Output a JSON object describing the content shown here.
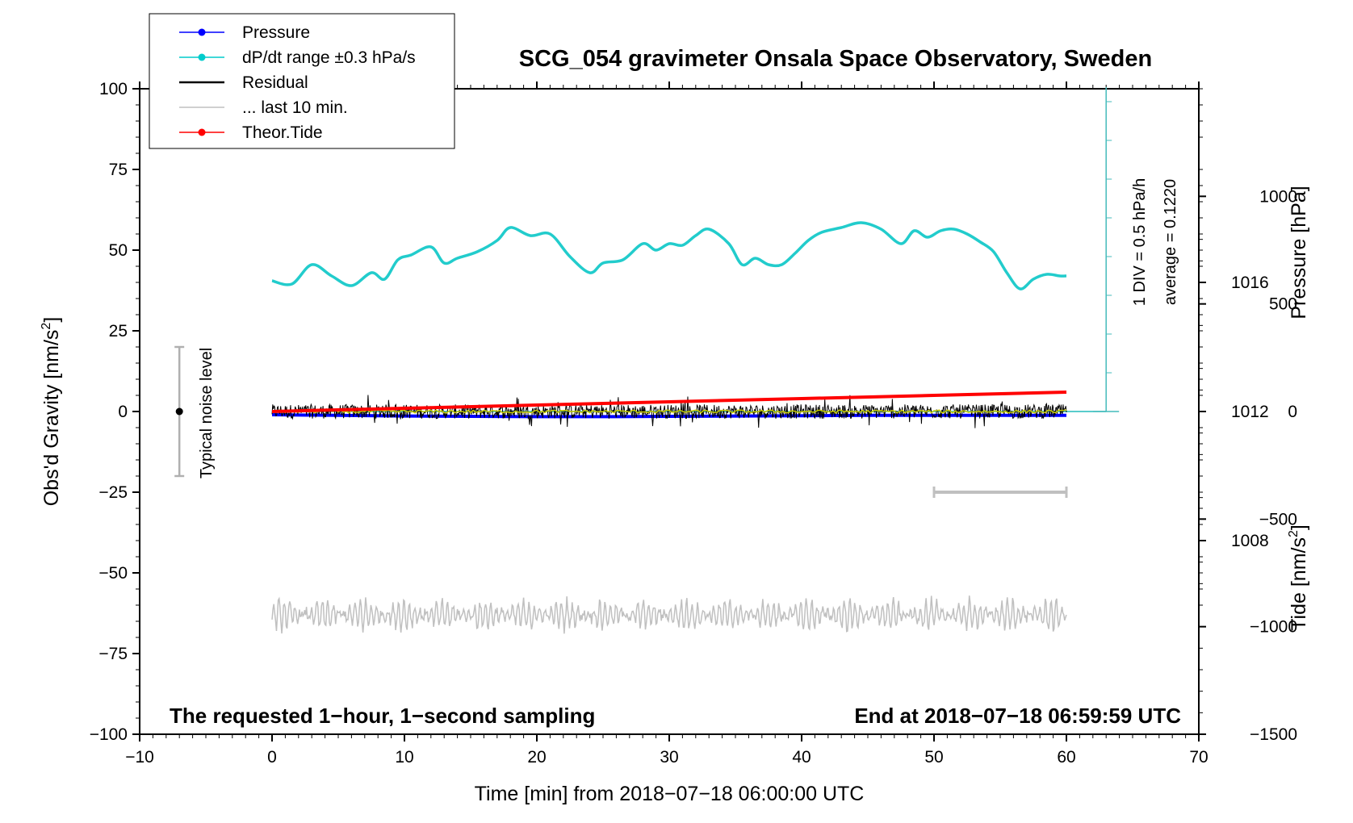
{
  "chart_data": {
    "type": "line",
    "title": "SCG_054 gravimeter Onsala Space Observatory, Sweden",
    "xlabel": "Time [min] from 2018−07−18 06:00:00 UTC",
    "ylabel": "Obs'd Gravity [nm/s",
    "ylabel_sup": "2",
    "ylabel_end": "]",
    "y2label": "Pressure [hPa]",
    "y3label": "Tide [nm/s",
    "y3label_sup": "2",
    "y3label_end": "]",
    "xlim": [
      -10,
      70
    ],
    "ylim": [
      -100,
      100
    ],
    "pressure_lim": [
      1002,
      1022
    ],
    "tide_lim": [
      -1500,
      1500
    ],
    "grid": false,
    "legend_position": "top-left",
    "x_ticks": [
      -10,
      0,
      10,
      20,
      30,
      40,
      50,
      60,
      70
    ],
    "x_tick_labels": [
      "−10",
      "0",
      "10",
      "20",
      "30",
      "40",
      "50",
      "60",
      "70"
    ],
    "y_ticks": [
      100,
      75,
      50,
      25,
      0,
      -25,
      -50,
      -75,
      -100
    ],
    "y_tick_labels": [
      "100",
      "75",
      "50",
      "25",
      "0",
      "−25",
      "−50",
      "−75",
      "−100"
    ],
    "pressure_ticks": [
      1016,
      1012,
      1008
    ],
    "pressure_tick_labels": [
      "1016",
      "1012",
      "1008"
    ],
    "tide_ticks": [
      1000,
      500,
      0,
      -500,
      -1000,
      -1500
    ],
    "tide_tick_labels": [
      "1000",
      "500",
      "0",
      "−500",
      "−1000",
      "−1500"
    ],
    "legend": [
      {
        "label": "Pressure",
        "color": "#0000ff",
        "marker": true
      },
      {
        "label": "dP/dt range ±0.3 hPa/s",
        "color": "#00cccc",
        "marker": true
      },
      {
        "label": "Residual",
        "color": "#000000",
        "marker": false
      },
      {
        "label": "... last 10 min.",
        "color": "#c0c0c0",
        "marker": false
      },
      {
        "label": "Theor.Tide",
        "color": "#ff0000",
        "marker": true
      }
    ],
    "series": [
      {
        "name": "Pressure",
        "color": "#0000ff",
        "axis": "pressure",
        "x": [
          0,
          5,
          10,
          15,
          20,
          25,
          30,
          35,
          40,
          45,
          50,
          55,
          60
        ],
        "values": [
          1011.9,
          1011.88,
          1011.86,
          1011.85,
          1011.84,
          1011.84,
          1011.85,
          1011.86,
          1011.87,
          1011.88,
          1011.88,
          1011.88,
          1011.88
        ]
      },
      {
        "name": "dP/dt",
        "color": "#22cccc",
        "axis": "gravity",
        "x": [
          0,
          1.5,
          3,
          4.5,
          6,
          7.5,
          8.5,
          9.5,
          10.5,
          12,
          13,
          14,
          15.5,
          17,
          18,
          19.5,
          21,
          22.5,
          24,
          25,
          26.5,
          28,
          29,
          30,
          31,
          32,
          33,
          34.5,
          35.5,
          36.5,
          37.5,
          38.5,
          39.5,
          40.5,
          41.5,
          43,
          44.5,
          46,
          47.5,
          48.5,
          49.5,
          50.5,
          51.5,
          52.5,
          53.5,
          54.5,
          55.5,
          56.5,
          57.5,
          58.5,
          59.5,
          60
        ],
        "values": [
          40.5,
          39.5,
          45.5,
          42,
          39,
          43,
          41,
          47,
          48.5,
          51,
          46,
          47.5,
          49.5,
          53,
          57,
          54.5,
          55,
          48,
          43,
          46,
          47,
          52,
          50,
          52,
          51.5,
          54.5,
          56.5,
          52,
          45.5,
          47.5,
          45.5,
          45.5,
          49,
          53,
          55.5,
          57,
          58.5,
          56.5,
          52,
          56,
          54,
          56,
          56.5,
          55,
          52.5,
          49.5,
          43,
          38,
          41,
          42.5,
          42,
          42
        ]
      },
      {
        "name": "Residual",
        "color": "#000000",
        "axis": "gravity",
        "x": [
          0,
          60
        ],
        "values": [
          0,
          0
        ]
      },
      {
        "name": "Residual (smoothed)",
        "color": "#cccc00",
        "axis": "gravity",
        "x": [
          0,
          60
        ],
        "values": [
          0,
          0
        ]
      },
      {
        "name": "... last 10 min.",
        "color": "#c0c0c0",
        "axis": "gravity",
        "x": [
          0,
          60
        ],
        "values": [
          -63,
          -63
        ]
      },
      {
        "name": "Theor.Tide",
        "color": "#ff0000",
        "axis": "tide",
        "x": [
          0,
          10,
          20,
          30,
          40,
          50,
          60
        ],
        "values": [
          0,
          15,
          30,
          45,
          60,
          75,
          90
        ]
      }
    ],
    "pressure_average_line": 1012,
    "last10_bar": {
      "x": [
        50,
        60
      ],
      "y": -25,
      "color": "#c0c0c0"
    },
    "noise_bar": {
      "x": -7,
      "y": 0,
      "low": -20,
      "high": 20,
      "color": "#b0b0b0"
    },
    "noise_label": "Typical noise level",
    "dpdt_scale_label1": "1 DIV = 0.5 hPa/h",
    "dpdt_scale_label2": "average = 0.1220",
    "footer_left": "The requested 1−hour, 1−second sampling",
    "footer_right": "End at 2018−07−18 06:59:59 UTC"
  }
}
